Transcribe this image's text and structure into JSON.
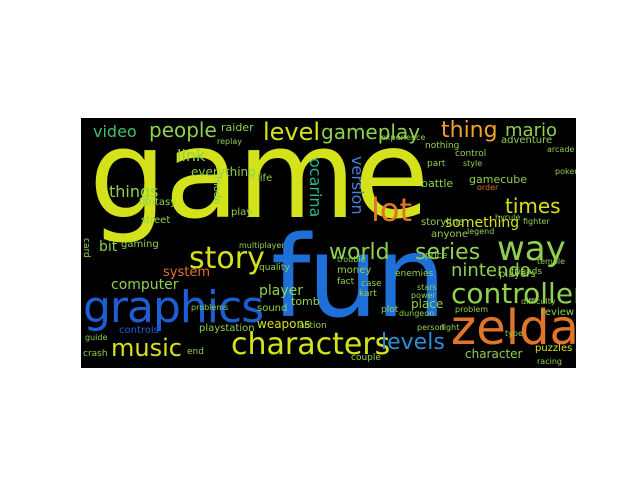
{
  "words": [
    {
      "id": "game",
      "text": "game",
      "color": "#d4e21b"
    },
    {
      "id": "fun",
      "text": "fun",
      "color": "#1f6fd8"
    },
    {
      "id": "zelda",
      "text": "zelda",
      "color": "#e0742a"
    },
    {
      "id": "graphics",
      "text": "graphics",
      "color": "#1c5fd4"
    },
    {
      "id": "characters",
      "text": "characters",
      "color": "#d4e21b"
    },
    {
      "id": "controller",
      "text": "controller",
      "color": "#8fd14f"
    },
    {
      "id": "music",
      "text": "music",
      "color": "#d4e21b"
    },
    {
      "id": "story",
      "text": "story",
      "color": "#d4e21b"
    },
    {
      "id": "way",
      "text": "way",
      "color": "#8fd14f"
    },
    {
      "id": "lot",
      "text": "lot",
      "color": "#e0742a"
    },
    {
      "id": "level",
      "text": "level",
      "color": "#d4e21b"
    },
    {
      "id": "gameplay",
      "text": "gameplay",
      "color": "#8fd14f"
    },
    {
      "id": "thing",
      "text": "thing",
      "color": "#f0a030"
    },
    {
      "id": "mario",
      "text": "mario",
      "color": "#8fd14f"
    },
    {
      "id": "people",
      "text": "people",
      "color": "#8fd14f"
    },
    {
      "id": "video",
      "text": "video",
      "color": "#3fc06a"
    },
    {
      "id": "levels",
      "text": "levels",
      "color": "#2a8fd6"
    },
    {
      "id": "world",
      "text": "world",
      "color": "#8fd14f"
    },
    {
      "id": "series",
      "text": "series",
      "color": "#8fd14f"
    },
    {
      "id": "nintendo",
      "text": "nintendo",
      "color": "#8fd14f"
    },
    {
      "id": "times",
      "text": "times",
      "color": "#d4e21b"
    },
    {
      "id": "version",
      "text": "version",
      "color": "#4a7fd8"
    },
    {
      "id": "ocarina",
      "text": "ocarina",
      "color": "#2ab58a"
    },
    {
      "id": "link",
      "text": "link",
      "color": "#8fd14f"
    },
    {
      "id": "things",
      "text": "things",
      "color": "#8fd14f"
    },
    {
      "id": "computer",
      "text": "computer",
      "color": "#8fd14f"
    },
    {
      "id": "player",
      "text": "player",
      "color": "#8fd14f"
    },
    {
      "id": "character",
      "text": "character",
      "color": "#8fd14f"
    },
    {
      "id": "something",
      "text": "something",
      "color": "#d4e21b"
    },
    {
      "id": "system",
      "text": "system",
      "color": "#e0742a"
    },
    {
      "id": "bit",
      "text": "bit",
      "color": "#8fd14f"
    },
    {
      "id": "gaming",
      "text": "gaming",
      "color": "#8fd14f"
    },
    {
      "id": "everything",
      "text": "everything",
      "color": "#8fd14f"
    },
    {
      "id": "fantasy",
      "text": "fantasy",
      "color": "#8fd14f"
    },
    {
      "id": "street",
      "text": "street",
      "color": "#8fd14f"
    },
    {
      "id": "playstation",
      "text": "playstation",
      "color": "#8fd14f"
    },
    {
      "id": "weapons",
      "text": "weapons",
      "color": "#d4e21b"
    },
    {
      "id": "storyline",
      "text": "storyline",
      "color": "#8fd14f"
    },
    {
      "id": "battle",
      "text": "battle",
      "color": "#8fd14f"
    },
    {
      "id": "sound",
      "text": "sound",
      "color": "#8fd14f"
    },
    {
      "id": "quality",
      "text": "quality",
      "color": "#8fd14f"
    },
    {
      "id": "controls",
      "text": "controls",
      "color": "#1c5fd4"
    },
    {
      "id": "action",
      "text": "action",
      "color": "#8fd14f"
    },
    {
      "id": "place",
      "text": "place",
      "color": "#8fd14f"
    },
    {
      "id": "puzzles",
      "text": "puzzles",
      "color": "#d4e21b"
    },
    {
      "id": "players",
      "text": "players",
      "color": "#8fd14f"
    },
    {
      "id": "review",
      "text": "review",
      "color": "#8fd14f"
    },
    {
      "id": "friends",
      "text": "friends",
      "color": "#8fd14f"
    },
    {
      "id": "gamecube",
      "text": "gamecube",
      "color": "#8fd14f"
    },
    {
      "id": "adventure",
      "text": "adventure",
      "color": "#8fd14f"
    },
    {
      "id": "raider",
      "text": "raider",
      "color": "#8fd14f"
    },
    {
      "id": "tomb",
      "text": "tomb",
      "color": "#8fd14f"
    },
    {
      "id": "anyone",
      "text": "anyone",
      "color": "#8fd14f"
    },
    {
      "id": "enemies",
      "text": "enemies",
      "color": "#8fd14f"
    },
    {
      "id": "price",
      "text": "price",
      "color": "#8fd14f"
    },
    {
      "id": "money",
      "text": "money",
      "color": "#8fd14f"
    },
    {
      "id": "fact",
      "text": "fact",
      "color": "#8fd14f"
    },
    {
      "id": "case",
      "text": "case",
      "color": "#8fd14f"
    },
    {
      "id": "kart",
      "text": "kart",
      "color": "#8fd14f"
    },
    {
      "id": "nothing",
      "text": "nothing",
      "color": "#8fd14f"
    },
    {
      "id": "part",
      "text": "part",
      "color": "#8fd14f"
    },
    {
      "id": "control",
      "text": "control",
      "color": "#8fd14f"
    },
    {
      "id": "style",
      "text": "style",
      "color": "#8fd14f"
    },
    {
      "id": "plot",
      "text": "plot",
      "color": "#8fd14f"
    },
    {
      "id": "dungeon",
      "text": "dungeon",
      "color": "#8fd14f"
    },
    {
      "id": "person",
      "text": "person",
      "color": "#8fd14f"
    },
    {
      "id": "couple",
      "text": "couple",
      "color": "#8fd14f"
    },
    {
      "id": "crash",
      "text": "crash",
      "color": "#8fd14f"
    },
    {
      "id": "end",
      "text": "end",
      "color": "#8fd14f"
    },
    {
      "id": "difficulty",
      "text": "difficulty",
      "color": "#8fd14f"
    },
    {
      "id": "fighter",
      "text": "fighter",
      "color": "#8fd14f"
    },
    {
      "id": "hyrule",
      "text": "hyrule",
      "color": "#8fd14f"
    },
    {
      "id": "multiplayer",
      "text": "multiplayer",
      "color": "#8fd14f"
    },
    {
      "id": "problems",
      "text": "problems",
      "color": "#8fd14f"
    },
    {
      "id": "problem",
      "text": "problem",
      "color": "#8fd14f"
    },
    {
      "id": "experience",
      "text": "experience",
      "color": "#8fd14f"
    },
    {
      "id": "replay",
      "text": "replay",
      "color": "#8fd14f"
    },
    {
      "id": "mode",
      "text": "mode",
      "color": "#8fd14f"
    },
    {
      "id": "play",
      "text": "play",
      "color": "#8fd14f"
    },
    {
      "id": "life",
      "text": "life",
      "color": "#8fd14f"
    },
    {
      "id": "temple",
      "text": "temple",
      "color": "#8fd14f"
    },
    {
      "id": "racing",
      "text": "racing",
      "color": "#8fd14f"
    },
    {
      "id": "type",
      "text": "type",
      "color": "#8fd14f"
    },
    {
      "id": "order",
      "text": "order",
      "color": "#e0742a"
    },
    {
      "id": "stars",
      "text": "stars",
      "color": "#8fd14f"
    },
    {
      "id": "power",
      "text": "power",
      "color": "#8fd14f"
    },
    {
      "id": "fight",
      "text": "fight",
      "color": "#8fd14f"
    },
    {
      "id": "card",
      "text": "card",
      "color": "#8fd14f"
    },
    {
      "id": "guide",
      "text": "guide",
      "color": "#8fd14f"
    },
    {
      "id": "trouble",
      "text": "trouble",
      "color": "#8fd14f"
    },
    {
      "id": "legend",
      "text": "legend",
      "color": "#8fd14f"
    },
    {
      "id": "pokemon",
      "text": "pokemon",
      "color": "#8fd14f"
    },
    {
      "id": "arcade",
      "text": "arcade",
      "color": "#8fd14f"
    }
  ]
}
